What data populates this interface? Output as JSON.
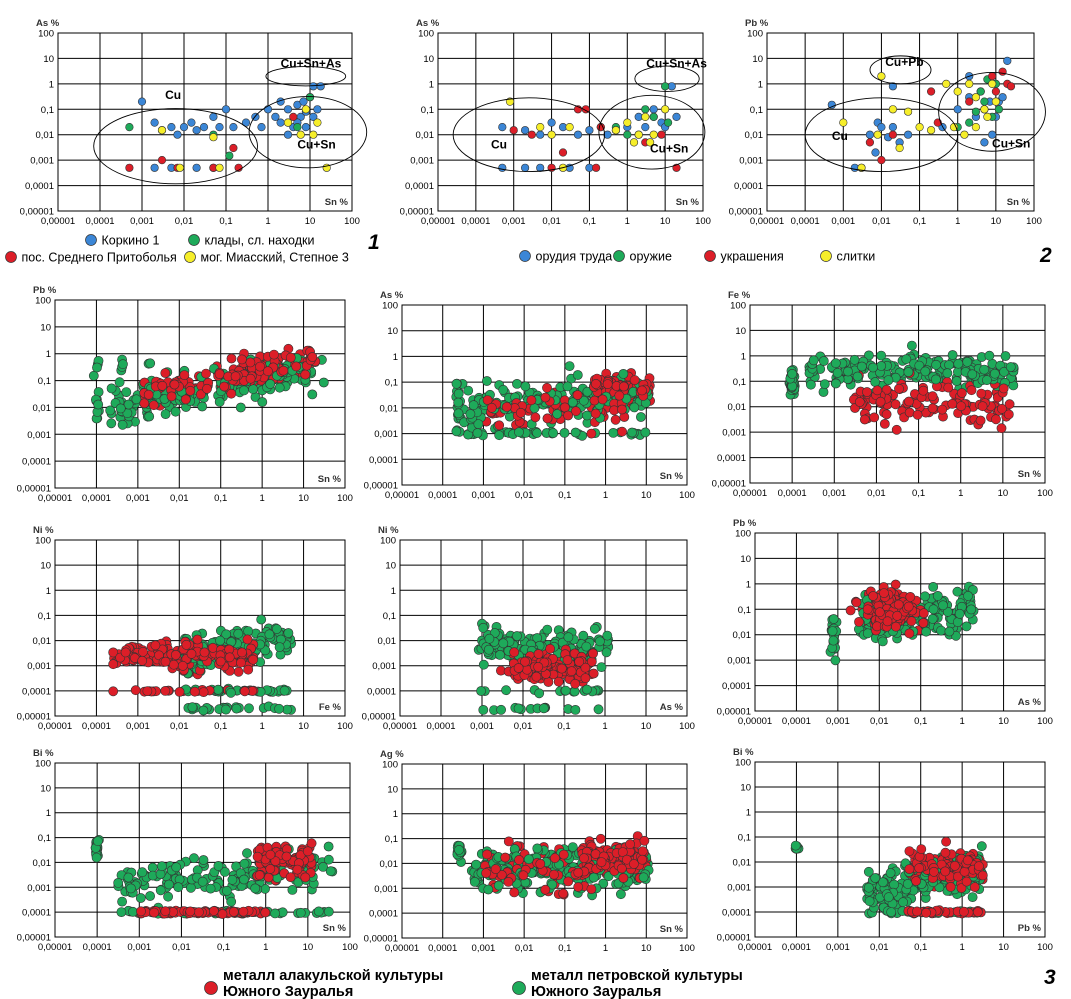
{
  "colors": {
    "blue": "#3b86d6",
    "green": "#1eaa5a",
    "red": "#dc1e28",
    "yellow": "#f6ee2a",
    "marker_edge": "#333333"
  },
  "x_ticks": [
    "0,00001",
    "0,0001",
    "0,001",
    "0,01",
    "0,1",
    "1",
    "10",
    "100"
  ],
  "y_ticks": [
    "100",
    "10",
    "1",
    "0,1",
    "0,01",
    "0,001",
    "0,0001",
    "0,00001"
  ],
  "figure_numbers": {
    "one": "1",
    "two": "2",
    "three": "3"
  },
  "legends": {
    "legend1": [
      {
        "label": "Коркино 1",
        "color": "blue"
      },
      {
        "label": "клады, сл. находки",
        "color": "green"
      },
      {
        "label": "пос. Среднего Притоболья",
        "color": "red"
      },
      {
        "label": "мог. Миасский, Степное 3",
        "color": "yellow"
      }
    ],
    "legend2": [
      {
        "label": "орудия труда",
        "color": "blue"
      },
      {
        "label": "оружие",
        "color": "green"
      },
      {
        "label": "украшения",
        "color": "red"
      },
      {
        "label": "слитки",
        "color": "yellow"
      }
    ],
    "legend3": [
      {
        "line1": "металл алакульской культуры",
        "line2": "Южного Зауралья",
        "color": "red"
      },
      {
        "line1": "металл петровской культуры",
        "line2": "Южного Зауралья",
        "color": "green"
      }
    ]
  },
  "chart_data": [
    {
      "id": "p1",
      "type": "scatter",
      "xlabel": "Sn %",
      "ylabel": "As %",
      "xscale": "log",
      "yscale": "log",
      "xlim": [
        1e-05,
        100
      ],
      "ylim": [
        1e-05,
        100
      ],
      "regions": [
        {
          "label": "Cu"
        },
        {
          "label": "Cu+Sn"
        },
        {
          "label": "Cu+Sn+As"
        }
      ],
      "series": [
        {
          "color": "blue",
          "points": [
            [
              0.001,
              0.2
            ],
            [
              0.002,
              0.03
            ],
            [
              0.003,
              0.015
            ],
            [
              0.005,
              0.02
            ],
            [
              0.007,
              0.01
            ],
            [
              0.01,
              0.02
            ],
            [
              0.015,
              0.03
            ],
            [
              0.02,
              0.015
            ],
            [
              0.03,
              0.02
            ],
            [
              0.05,
              0.05
            ],
            [
              0.07,
              0.02
            ],
            [
              0.1,
              0.1
            ],
            [
              0.15,
              0.02
            ],
            [
              0.3,
              0.03
            ],
            [
              0.5,
              0.05
            ],
            [
              0.7,
              0.02
            ],
            [
              1,
              0.1
            ],
            [
              1.5,
              0.05
            ],
            [
              2,
              0.03
            ],
            [
              3,
              0.1
            ],
            [
              4,
              0.02
            ],
            [
              5,
              0.15
            ],
            [
              6,
              0.05
            ],
            [
              7,
              0.2
            ],
            [
              8,
              0.08
            ],
            [
              10,
              0.3
            ],
            [
              12,
              0.05
            ],
            [
              15,
              0.1
            ],
            [
              12,
              0.8
            ],
            [
              18,
              0.8
            ],
            [
              0.002,
              0.0005
            ],
            [
              0.005,
              0.0005
            ],
            [
              0.02,
              0.0005
            ],
            [
              0.05,
              0.0005
            ],
            [
              3,
              0.01
            ],
            [
              5,
              0.03
            ],
            [
              2,
              0.2
            ],
            [
              8,
              0.02
            ]
          ]
        },
        {
          "color": "green",
          "points": [
            [
              0.0005,
              0.02
            ],
            [
              0.05,
              0.01
            ],
            [
              0.12,
              0.0015
            ],
            [
              3,
              0.03
            ],
            [
              5,
              0.02
            ],
            [
              10,
              0.3
            ]
          ]
        },
        {
          "color": "red",
          "points": [
            [
              0.0005,
              0.0005
            ],
            [
              0.003,
              0.001
            ],
            [
              0.007,
              0.0005
            ],
            [
              0.05,
              0.0005
            ],
            [
              0.2,
              0.0005
            ],
            [
              0.15,
              0.003
            ],
            [
              4,
              0.05
            ]
          ]
        },
        {
          "color": "yellow",
          "points": [
            [
              0.003,
              0.015
            ],
            [
              0.008,
              0.0005
            ],
            [
              0.05,
              0.008
            ],
            [
              0.07,
              0.0005
            ],
            [
              3,
              0.03
            ],
            [
              6,
              0.01
            ],
            [
              15,
              0.03
            ],
            [
              25,
              0.0005
            ],
            [
              8,
              0.1
            ],
            [
              12,
              0.01
            ]
          ]
        }
      ]
    },
    {
      "id": "p2",
      "type": "scatter",
      "xlabel": "Sn %",
      "ylabel": "As %",
      "xscale": "log",
      "yscale": "log",
      "xlim": [
        1e-05,
        100
      ],
      "ylim": [
        1e-05,
        100
      ],
      "regions": [
        {
          "label": "Cu"
        },
        {
          "label": "Cu+Sn"
        },
        {
          "label": "Cu+Sn+As"
        }
      ],
      "series": [
        {
          "color": "blue",
          "points": [
            [
              0.0005,
              0.02
            ],
            [
              0.0005,
              0.0005
            ],
            [
              0.002,
              0.015
            ],
            [
              0.005,
              0.01
            ],
            [
              0.01,
              0.03
            ],
            [
              0.02,
              0.02
            ],
            [
              0.05,
              0.01
            ],
            [
              0.1,
              0.015
            ],
            [
              0.2,
              0.02
            ],
            [
              0.3,
              0.01
            ],
            [
              0.5,
              0.015
            ],
            [
              1,
              0.02
            ],
            [
              2,
              0.05
            ],
            [
              3,
              0.02
            ],
            [
              5,
              0.1
            ],
            [
              8,
              0.03
            ],
            [
              10,
              0.02
            ],
            [
              20,
              0.05
            ],
            [
              15,
              0.8
            ],
            [
              0.002,
              0.0005
            ],
            [
              0.005,
              0.0005
            ],
            [
              0.03,
              0.0005
            ],
            [
              0.1,
              0.0005
            ],
            [
              2,
              0.01
            ],
            [
              5,
              0.05
            ]
          ]
        },
        {
          "color": "green",
          "points": [
            [
              0.5,
              0.02
            ],
            [
              3,
              0.1
            ],
            [
              5,
              0.05
            ],
            [
              10,
              0.8
            ],
            [
              12,
              0.03
            ],
            [
              1,
              0.01
            ]
          ]
        },
        {
          "color": "red",
          "points": [
            [
              0.001,
              0.015
            ],
            [
              0.003,
              0.01
            ],
            [
              0.01,
              0.0005
            ],
            [
              0.05,
              0.1
            ],
            [
              0.08,
              0.1
            ],
            [
              0.02,
              0.002
            ],
            [
              3,
              0.005
            ],
            [
              8,
              0.01
            ],
            [
              20,
              0.0005
            ],
            [
              0.2,
              0.02
            ],
            [
              0.15,
              0.0005
            ]
          ]
        },
        {
          "color": "yellow",
          "points": [
            [
              0.0008,
              0.2
            ],
            [
              0.005,
              0.02
            ],
            [
              0.01,
              0.01
            ],
            [
              0.02,
              0.0005
            ],
            [
              0.5,
              0.015
            ],
            [
              1,
              0.03
            ],
            [
              2,
              0.01
            ],
            [
              3,
              0.05
            ],
            [
              5,
              0.01
            ],
            [
              10,
              0.1
            ],
            [
              1.5,
              0.005
            ],
            [
              4,
              0.005
            ],
            [
              0.03,
              0.02
            ]
          ]
        }
      ]
    },
    {
      "id": "p3",
      "type": "scatter",
      "xlabel": "Sn %",
      "ylabel": "Pb %",
      "xscale": "log",
      "yscale": "log",
      "xlim": [
        1e-05,
        100
      ],
      "ylim": [
        1e-05,
        100
      ],
      "regions": [
        {
          "label": "Cu"
        },
        {
          "label": "Cu+Sn"
        },
        {
          "label": "Cu+Pb"
        }
      ],
      "series": [
        {
          "color": "blue",
          "points": [
            [
              0.0005,
              0.15
            ],
            [
              0.002,
              0.0005
            ],
            [
              0.003,
              0.0005
            ],
            [
              0.005,
              0.01
            ],
            [
              0.008,
              0.03
            ],
            [
              0.01,
              0.02
            ],
            [
              0.02,
              0.02
            ],
            [
              0.03,
              0.005
            ],
            [
              0.05,
              0.01
            ],
            [
              0.015,
              0.008
            ],
            [
              0.007,
              0.002
            ],
            [
              0.4,
              0.02
            ],
            [
              1,
              0.1
            ],
            [
              2,
              0.3
            ],
            [
              3,
              0.05
            ],
            [
              5,
              0.1
            ],
            [
              7,
              0.2
            ],
            [
              10,
              0.05
            ],
            [
              12,
              0.2
            ],
            [
              15,
              0.3
            ],
            [
              20,
              8
            ],
            [
              2,
              2
            ],
            [
              8,
              0.01
            ],
            [
              4,
              0.5
            ],
            [
              0.02,
              0.8
            ],
            [
              5,
              0.005
            ]
          ]
        },
        {
          "color": "green",
          "points": [
            [
              2,
              0.03
            ],
            [
              3,
              0.08
            ],
            [
              5,
              0.2
            ],
            [
              8,
              0.05
            ],
            [
              10,
              1
            ],
            [
              12,
              0.1
            ],
            [
              1,
              0.02
            ],
            [
              6,
              1.5
            ],
            [
              4,
              0.5
            ]
          ]
        },
        {
          "color": "red",
          "points": [
            [
              0.005,
              0.005
            ],
            [
              0.01,
              0.001
            ],
            [
              0.02,
              0.01
            ],
            [
              0.2,
              0.5
            ],
            [
              0.3,
              0.03
            ],
            [
              2,
              0.2
            ],
            [
              10,
              0.5
            ],
            [
              20,
              1
            ],
            [
              25,
              0.8
            ],
            [
              15,
              3
            ],
            [
              8,
              2
            ]
          ]
        },
        {
          "color": "yellow",
          "points": [
            [
              0.001,
              0.03
            ],
            [
              0.003,
              0.0005
            ],
            [
              0.008,
              0.01
            ],
            [
              0.01,
              2
            ],
            [
              0.02,
              0.1
            ],
            [
              0.03,
              0.003
            ],
            [
              0.05,
              0.08
            ],
            [
              0.1,
              0.02
            ],
            [
              0.2,
              0.015
            ],
            [
              0.5,
              1
            ],
            [
              1,
              0.5
            ],
            [
              2,
              1
            ],
            [
              3,
              0.3
            ],
            [
              5,
              0.1
            ],
            [
              6,
              0.05
            ],
            [
              8,
              1
            ],
            [
              10,
              0.2
            ],
            [
              0.8,
              0.02
            ],
            [
              1.5,
              0.01
            ],
            [
              3,
              0.02
            ]
          ]
        }
      ]
    },
    {
      "id": "p4",
      "type": "scatter",
      "xlabel": "Sn %",
      "ylabel": "Pb %",
      "xscale": "log",
      "yscale": "log",
      "xlim": [
        1e-05,
        100
      ],
      "ylim": [
        1e-05,
        100
      ],
      "generator": {
        "pattern": "rise",
        "green_count": 230,
        "red_count": 170
      }
    },
    {
      "id": "p5",
      "type": "scatter",
      "xlabel": "Sn %",
      "ylabel": "As %",
      "xscale": "log",
      "yscale": "log",
      "xlim": [
        1e-05,
        100
      ],
      "ylim": [
        1e-05,
        100
      ],
      "generator": {
        "pattern": "band-as",
        "green_count": 220,
        "red_count": 150
      }
    },
    {
      "id": "p6",
      "type": "scatter",
      "xlabel": "Sn %",
      "ylabel": "Fe %",
      "xscale": "log",
      "yscale": "log",
      "xlim": [
        1e-05,
        100
      ],
      "ylim": [
        1e-05,
        100
      ],
      "generator": {
        "pattern": "fe",
        "green_count": 240,
        "red_count": 120
      }
    },
    {
      "id": "p7",
      "type": "scatter",
      "xlabel": "Fe %",
      "ylabel": "Ni %",
      "xscale": "log",
      "yscale": "log",
      "xlim": [
        1e-05,
        100
      ],
      "ylim": [
        1e-05,
        100
      ],
      "generator": {
        "pattern": "nife",
        "green_count": 200,
        "red_count": 200
      }
    },
    {
      "id": "p8",
      "type": "scatter",
      "xlabel": "As %",
      "ylabel": "Ni %",
      "xscale": "log",
      "yscale": "log",
      "xlim": [
        1e-05,
        100
      ],
      "ylim": [
        1e-05,
        100
      ],
      "generator": {
        "pattern": "nias",
        "green_count": 180,
        "red_count": 170
      }
    },
    {
      "id": "p9",
      "type": "scatter",
      "xlabel": "As %",
      "ylabel": "Pb %",
      "xscale": "log",
      "yscale": "log",
      "xlim": [
        1e-05,
        100
      ],
      "ylim": [
        1e-05,
        100
      ],
      "generator": {
        "pattern": "pbas",
        "green_count": 170,
        "red_count": 200
      }
    },
    {
      "id": "p10",
      "type": "scatter",
      "xlabel": "Sn %",
      "ylabel": "Bi %",
      "xscale": "log",
      "yscale": "log",
      "xlim": [
        1e-05,
        100
      ],
      "ylim": [
        1e-05,
        100
      ],
      "generator": {
        "pattern": "bisn",
        "green_count": 210,
        "red_count": 200
      }
    },
    {
      "id": "p11",
      "type": "scatter",
      "xlabel": "Sn %",
      "ylabel": "Ag %",
      "xscale": "log",
      "yscale": "log",
      "xlim": [
        1e-05,
        100
      ],
      "ylim": [
        1e-05,
        100
      ],
      "generator": {
        "pattern": "agsn",
        "green_count": 230,
        "red_count": 200
      }
    },
    {
      "id": "p12",
      "type": "scatter",
      "xlabel": "Pb %",
      "ylabel": "Bi %",
      "xscale": "log",
      "yscale": "log",
      "xlim": [
        1e-05,
        100
      ],
      "ylim": [
        1e-05,
        100
      ],
      "generator": {
        "pattern": "bipb",
        "green_count": 230,
        "red_count": 190
      }
    }
  ]
}
